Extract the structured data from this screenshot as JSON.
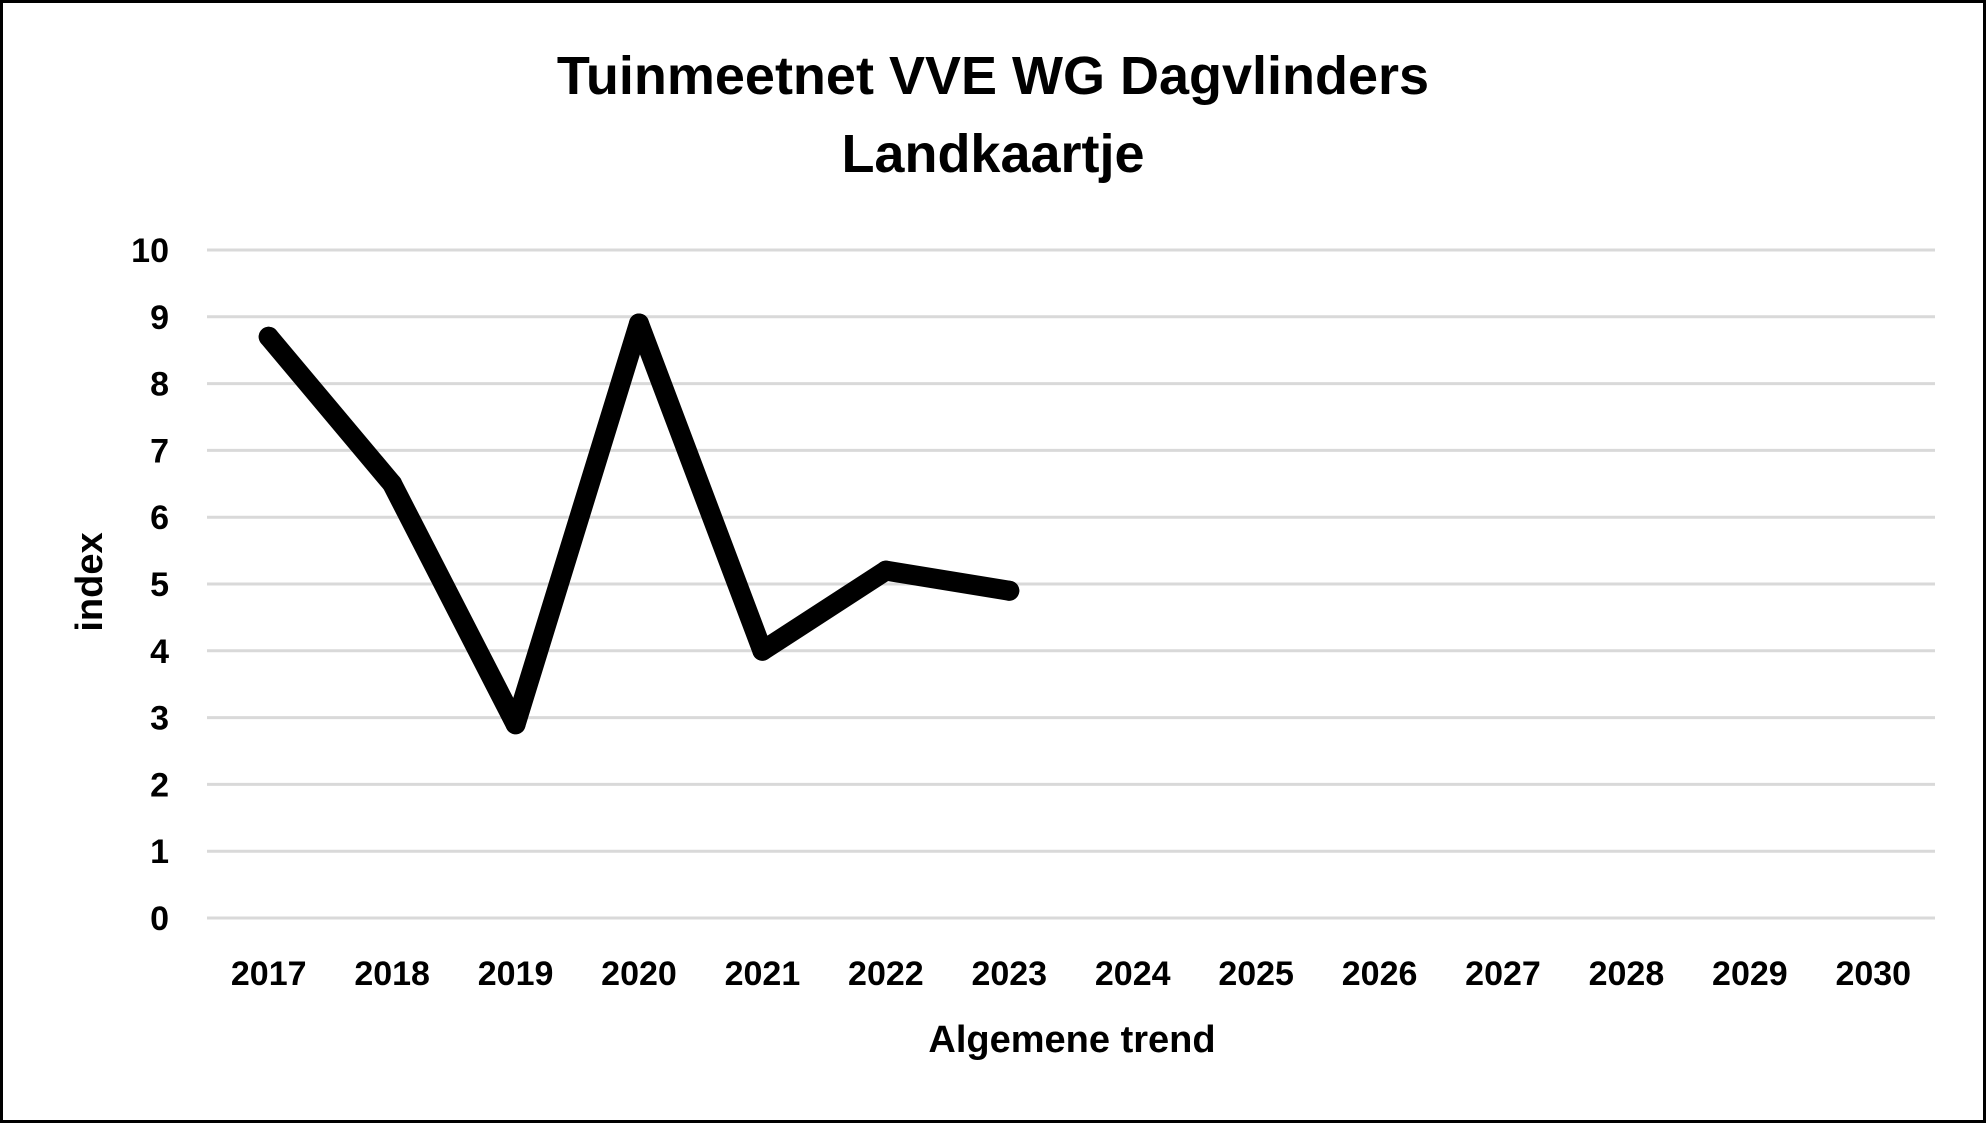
{
  "chart_data": {
    "type": "line",
    "title": "Tuinmeetnet VVE WG Dagvlinders",
    "subtitle": "Landkaartje",
    "xlabel": "Algemene trend",
    "ylabel": "index",
    "categories": [
      "2017",
      "2018",
      "2019",
      "2020",
      "2021",
      "2022",
      "2023",
      "2024",
      "2025",
      "2026",
      "2027",
      "2028",
      "2029",
      "2030"
    ],
    "series": [
      {
        "values": [
          8.7,
          6.5,
          2.9,
          8.9,
          4.0,
          5.2,
          4.9,
          null,
          null,
          null,
          null,
          null,
          null,
          null
        ],
        "color": "#000000"
      }
    ],
    "ylim": [
      0,
      10
    ],
    "yticks": [
      "0",
      "1",
      "2",
      "3",
      "4",
      "5",
      "6",
      "7",
      "8",
      "9",
      "10"
    ],
    "grid": true,
    "legend": "none",
    "gridColor": "#d9d9d9",
    "lineColor": "#000000"
  }
}
